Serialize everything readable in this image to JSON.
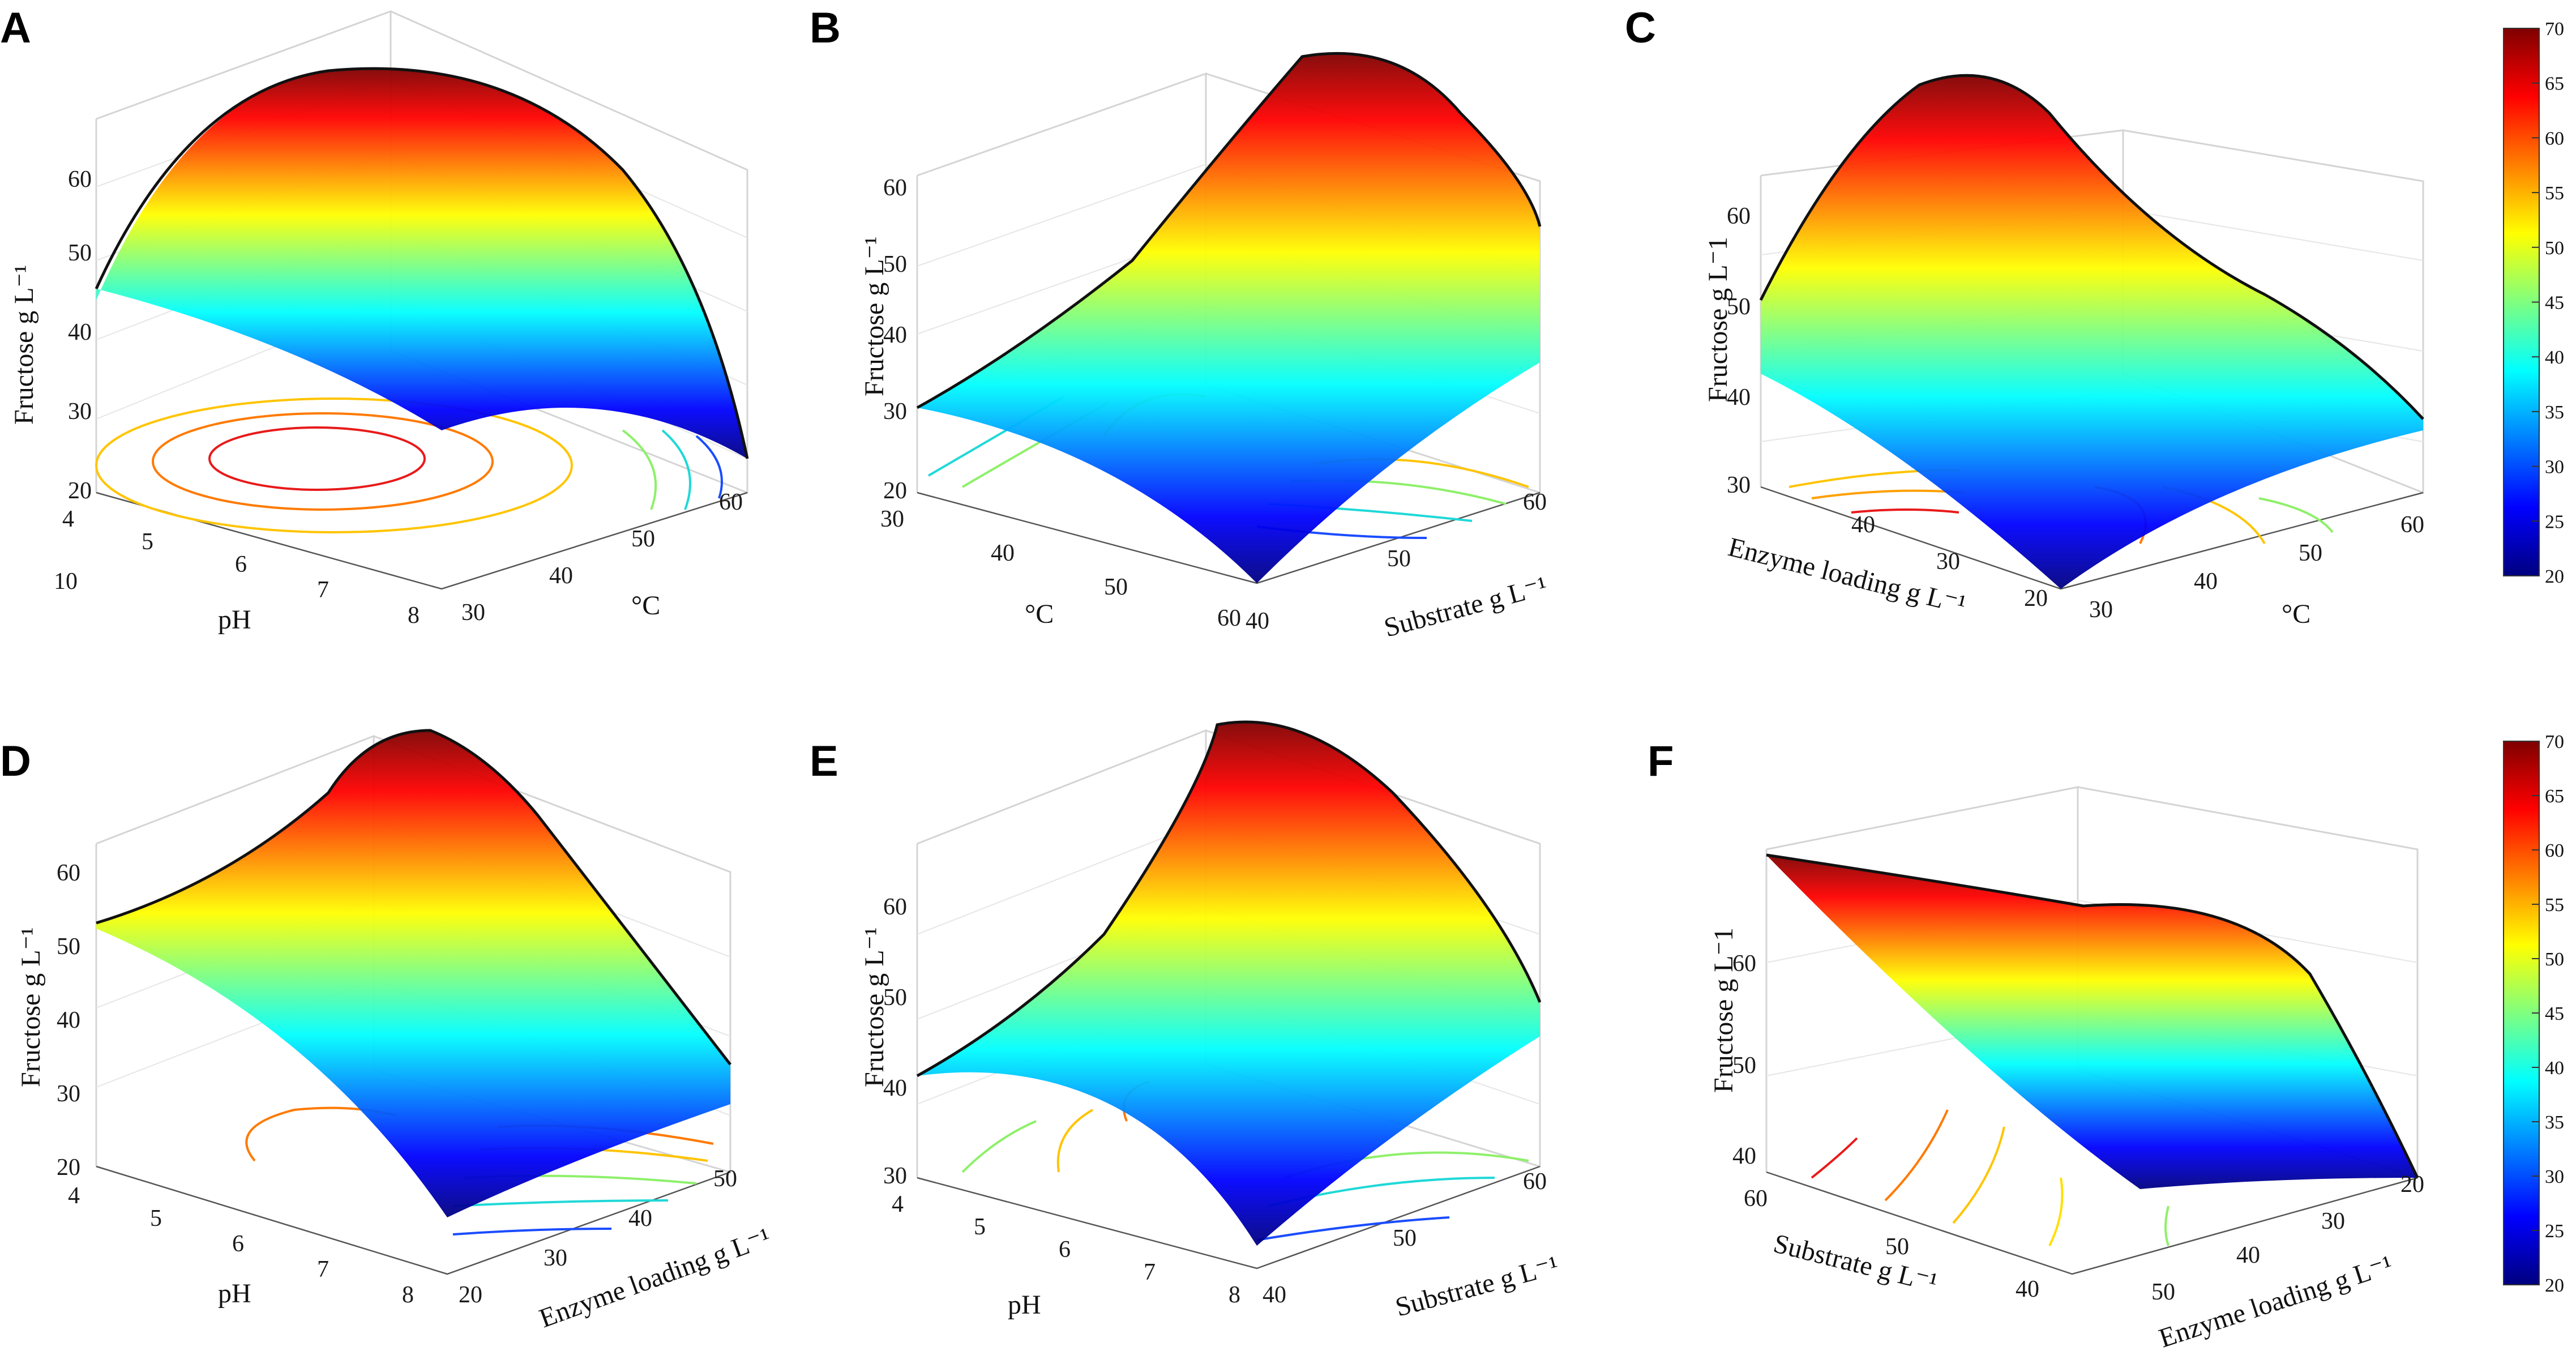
{
  "chart_data": [
    {
      "panel": "A",
      "type": "surface",
      "zlabel": "Fructose g L⁻¹",
      "xlabel": "pH",
      "ylabel": "°C",
      "z_ticks": [
        "10",
        "20",
        "30",
        "40",
        "50",
        "60"
      ],
      "x_ticks": [
        "4",
        "5",
        "6",
        "7",
        "8"
      ],
      "y_ticks": [
        "30",
        "40",
        "50",
        "60"
      ],
      "zlim": [
        10,
        70
      ],
      "z_peak": 67,
      "z_corners": [
        43,
        20,
        20,
        41
      ]
    },
    {
      "panel": "B",
      "type": "surface",
      "zlabel": "Fructose g L⁻¹",
      "xlabel": "°C",
      "ylabel": "Substrate g L⁻¹",
      "z_ticks": [
        "20",
        "30",
        "40",
        "50",
        "60"
      ],
      "x_ticks": [
        "30",
        "40",
        "50",
        "60"
      ],
      "y_ticks": [
        "40",
        "50",
        "60"
      ],
      "zlim": [
        20,
        70
      ],
      "z_peak": 69,
      "z_corners": [
        37,
        21,
        55,
        45
      ]
    },
    {
      "panel": "C",
      "type": "surface",
      "zlabel": "Fructose g L⁻1",
      "xlabel": "Enzyme loading g L⁻¹",
      "ylabel": "°C",
      "z_ticks": [
        "30",
        "40",
        "50",
        "60"
      ],
      "x_ticks": [
        "20",
        "30",
        "40"
      ],
      "y_ticks": [
        "30",
        "40",
        "50",
        "60"
      ],
      "zlim": [
        30,
        70
      ],
      "z_peak": 69,
      "z_corners": [
        50,
        37,
        41,
        55
      ]
    },
    {
      "panel": "D",
      "type": "surface",
      "zlabel": "Fructose g L⁻¹",
      "xlabel": "pH",
      "ylabel": "Enzyme loading g L⁻¹",
      "z_ticks": [
        "20",
        "30",
        "40",
        "50",
        "60"
      ],
      "x_ticks": [
        "4",
        "5",
        "6",
        "7",
        "8"
      ],
      "y_ticks": [
        "20",
        "30",
        "40",
        "50"
      ],
      "zlim": [
        20,
        70
      ],
      "z_peak": 68,
      "z_corners": [
        54,
        26,
        48,
        55
      ]
    },
    {
      "panel": "E",
      "type": "surface",
      "zlabel": "Fructose g L⁻¹",
      "xlabel": "pH",
      "ylabel": "Substrate g L⁻¹",
      "z_ticks": [
        "30",
        "40",
        "50",
        "60"
      ],
      "x_ticks": [
        "4",
        "5",
        "6",
        "7",
        "8"
      ],
      "y_ticks": [
        "40",
        "50",
        "60"
      ],
      "zlim": [
        30,
        70
      ],
      "z_peak": 69,
      "z_corners": [
        41,
        35,
        53,
        50
      ]
    },
    {
      "panel": "F",
      "type": "surface",
      "zlabel": "Fructose g L⁻1",
      "xlabel": "Substrate g L⁻¹",
      "ylabel": "Enzyme loading g L⁻¹",
      "z_ticks": [
        "40",
        "50",
        "60"
      ],
      "x_ticks": [
        "40",
        "50",
        "60"
      ],
      "y_ticks": [
        "20",
        "30",
        "40",
        "50"
      ],
      "zlim": [
        38,
        70
      ],
      "z_peak": 68,
      "z_corners": [
        68,
        47,
        44,
        63
      ]
    }
  ],
  "colorbars": [
    {
      "ticks": [
        "20",
        "25",
        "30",
        "35",
        "40",
        "45",
        "50",
        "55",
        "60",
        "65",
        "70"
      ],
      "range": [
        20,
        70
      ]
    },
    {
      "ticks": [
        "20",
        "25",
        "30",
        "35",
        "40",
        "45",
        "50",
        "55",
        "60",
        "65",
        "70"
      ],
      "range": [
        20,
        70
      ]
    }
  ],
  "colormap": [
    "#00007f",
    "#0000ff",
    "#007fff",
    "#00ffff",
    "#7fff7f",
    "#ffff00",
    "#ff7f00",
    "#ff0000",
    "#7f0000"
  ]
}
